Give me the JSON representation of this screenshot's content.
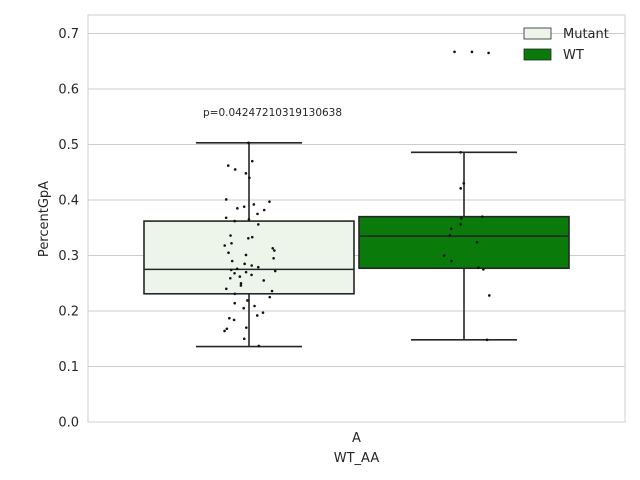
{
  "chart_data": {
    "type": "boxplot",
    "xlabel": "WT_AA",
    "ylabel": "PercentGpA",
    "categories": [
      "A"
    ],
    "ylim": [
      0,
      0.73
    ],
    "yticks": [
      "0.0",
      "0.1",
      "0.2",
      "0.3",
      "0.4",
      "0.5",
      "0.6",
      "0.7"
    ],
    "grid": true,
    "legend_position": "top-right",
    "annotation": "p=0.04247210319130638",
    "series": [
      {
        "name": "Mutant",
        "color": "#edf5ea",
        "whisker_low": 0.136,
        "q1": 0.231,
        "median": 0.275,
        "q3": 0.362,
        "whisker_high": 0.503,
        "points": [
          0.503,
          0.47,
          0.462,
          0.455,
          0.448,
          0.44,
          0.401,
          0.397,
          0.392,
          0.388,
          0.385,
          0.382,
          0.375,
          0.368,
          0.365,
          0.362,
          0.356,
          0.336,
          0.333,
          0.331,
          0.322,
          0.318,
          0.313,
          0.309,
          0.305,
          0.301,
          0.295,
          0.29,
          0.285,
          0.282,
          0.279,
          0.276,
          0.274,
          0.272,
          0.27,
          0.268,
          0.265,
          0.262,
          0.259,
          0.255,
          0.25,
          0.246,
          0.24,
          0.236,
          0.231,
          0.225,
          0.219,
          0.214,
          0.209,
          0.205,
          0.197,
          0.192,
          0.187,
          0.184,
          0.17,
          0.168,
          0.164,
          0.15,
          0.137
        ]
      },
      {
        "name": "WT",
        "color": "#0a7a0a",
        "whisker_low": 0.148,
        "q1": 0.277,
        "median": 0.335,
        "q3": 0.37,
        "whisker_high": 0.486,
        "points": [
          0.667,
          0.665,
          0.667,
          0.486,
          0.43,
          0.421,
          0.37,
          0.367,
          0.356,
          0.348,
          0.336,
          0.324,
          0.3,
          0.29,
          0.278,
          0.275,
          0.228,
          0.148
        ]
      }
    ]
  }
}
